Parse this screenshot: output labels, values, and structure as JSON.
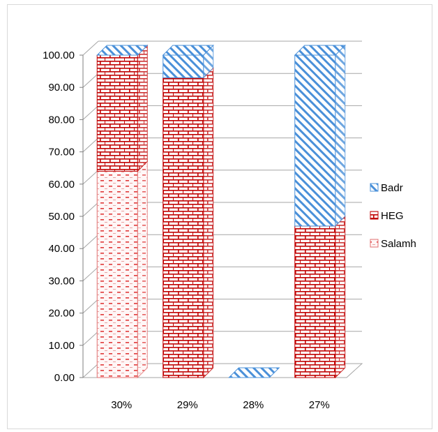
{
  "chart_data": {
    "type": "bar",
    "stacked": true,
    "three_d": true,
    "categories": [
      "30%",
      "29%",
      "28%",
      "27%"
    ],
    "series": [
      {
        "name": "Salamh",
        "values": [
          64,
          0,
          0,
          0
        ],
        "color": "#e03a3a",
        "pattern": "dashes"
      },
      {
        "name": "HEG",
        "values": [
          36,
          93,
          0,
          47
        ],
        "color": "#c00000",
        "pattern": "bricks"
      },
      {
        "name": "Badr",
        "values": [
          0,
          7,
          0,
          53
        ],
        "color": "#4a90d9",
        "pattern": "diagonal-stripes"
      }
    ],
    "ylim": [
      0,
      100
    ],
    "yticks": [
      "0.00",
      "10.00",
      "20.00",
      "30.00",
      "40.00",
      "50.00",
      "60.00",
      "70.00",
      "80.00",
      "90.00",
      "100.00"
    ],
    "grid": true,
    "legend_position": "right",
    "legend_order": [
      "Badr",
      "HEG",
      "Salamh"
    ],
    "title": "",
    "xlabel": "",
    "ylabel": ""
  }
}
